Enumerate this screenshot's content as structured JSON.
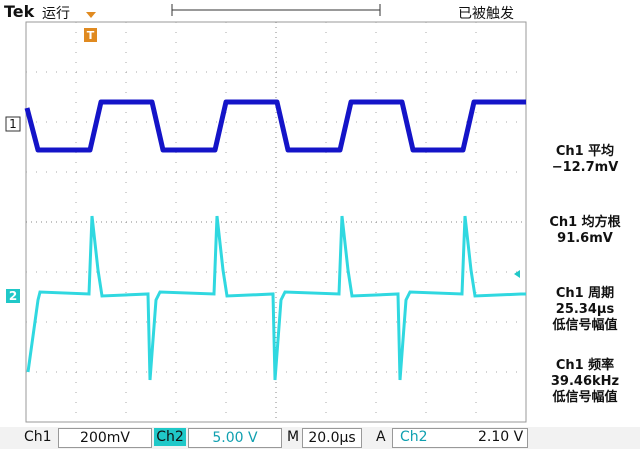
{
  "header": {
    "brand": "Tek",
    "status": "运行",
    "trigger_state": "已被触发"
  },
  "markers": {
    "ch1": "1",
    "ch2": "2",
    "trigger": "T"
  },
  "measurements": [
    {
      "label": "Ch1 平均",
      "value": "−12.7mV"
    },
    {
      "label": "Ch1 均方根",
      "value": "91.6mV"
    },
    {
      "label": "Ch1 周期",
      "value": "25.34μs",
      "note": "低信号幅值"
    },
    {
      "label": "Ch1 频率",
      "value": "39.46kHz",
      "note": "低信号幅值"
    }
  ],
  "footer": {
    "ch1": "Ch1",
    "ch1_scale": "200mV",
    "ch2": "Ch2",
    "ch2_scale": "5.00 V",
    "time_prefix": "M",
    "time_scale": "20.0μs",
    "trigger_prefix": "A",
    "trigger_source": "Ch2",
    "trigger_level": "2.10 V"
  }
}
